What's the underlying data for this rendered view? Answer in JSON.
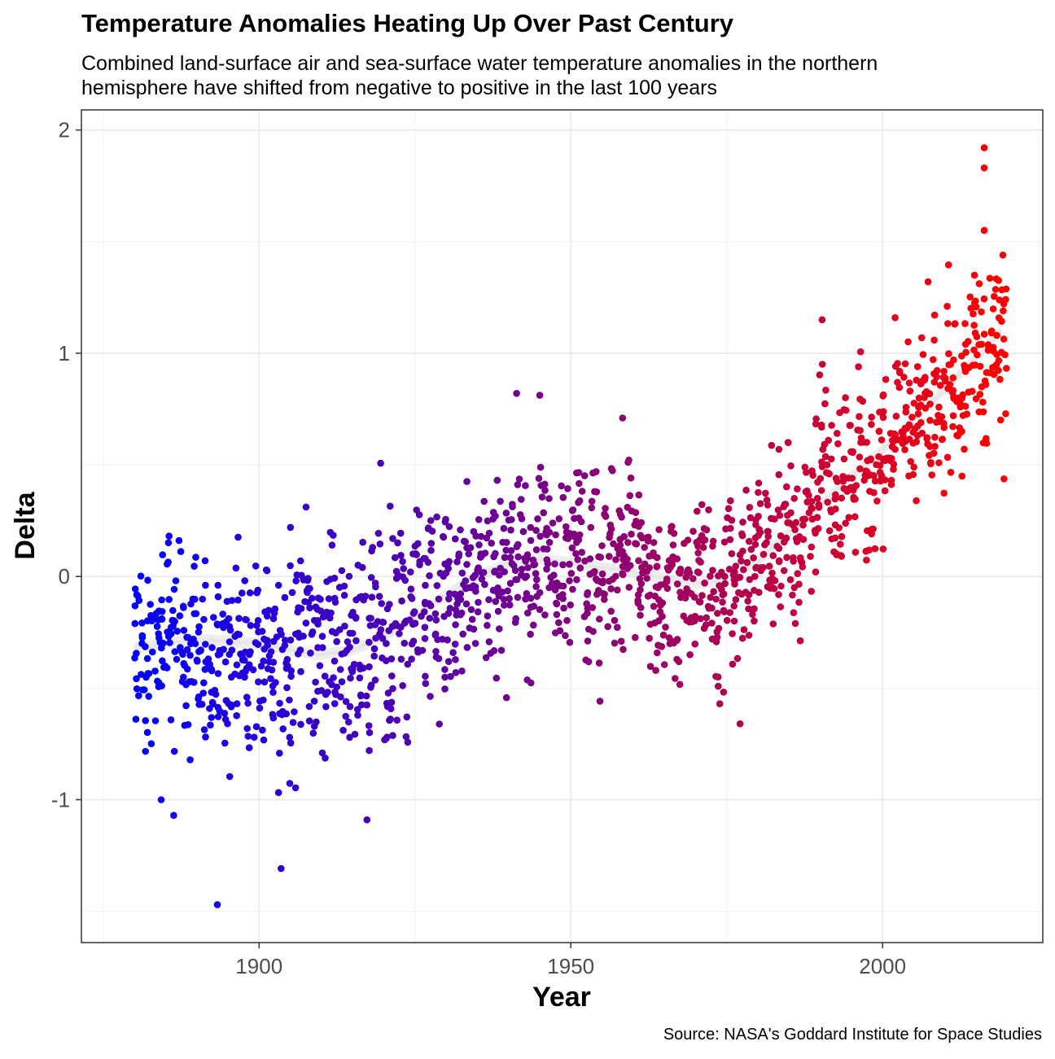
{
  "chart_data": {
    "type": "scatter",
    "title": "Temperature Anomalies Heating Up Over Past Century",
    "subtitle": [
      "Combined land-surface air and sea-surface water temperature anomalies in the northern",
      "hemisphere have shifted from negative to positive in the last 100 years"
    ],
    "xlabel": "Year",
    "ylabel": "Delta",
    "caption": "Source: NASA's Goddard Institute for Space Studies",
    "xlim": [
      1871.5,
      2025.7
    ],
    "ylim": [
      -1.64,
      2.09
    ],
    "x_ticks": [
      1900,
      1950,
      2000
    ],
    "x_tick_labels": [
      "1900",
      "1950",
      "2000"
    ],
    "y_ticks": [
      -1,
      0,
      1,
      2
    ],
    "y_tick_labels": [
      "-1",
      "0",
      "1",
      "2"
    ],
    "x_minor_ticks": [
      1875,
      1925,
      1975,
      2025
    ],
    "y_minor_ticks": [
      -1.5,
      -0.5,
      0.5,
      1.5
    ],
    "grid": true,
    "legend": "none",
    "point_color_low": "#0000ff",
    "point_color_high": "#ff0000",
    "smooth_color": "#e6e6e6",
    "points_note_free": true,
    "series": [
      {
        "kind": "monthly-points",
        "year_start": 1880,
        "year_end": 2019,
        "points_per_year": 12
      }
    ],
    "smooth": {
      "x": [
        1880,
        1885,
        1890,
        1895,
        1900,
        1905,
        1910,
        1915,
        1920,
        1925,
        1930,
        1935,
        1940,
        1945,
        1950,
        1955,
        1960,
        1965,
        1970,
        1975,
        1980,
        1985,
        1990,
        1995,
        2000,
        2005,
        2010,
        2015,
        2019
      ],
      "y": [
        -0.32,
        -0.3,
        -0.28,
        -0.29,
        -0.3,
        -0.33,
        -0.35,
        -0.33,
        -0.27,
        -0.18,
        -0.08,
        0.0,
        0.06,
        0.08,
        0.06,
        0.04,
        0.02,
        -0.01,
        -0.03,
        -0.02,
        0.07,
        0.2,
        0.32,
        0.45,
        0.57,
        0.7,
        0.84,
        0.98,
        1.1
      ]
    },
    "labeled_outliers": [
      {
        "x": 1893,
        "y": -1.47
      },
      {
        "x": 1884,
        "y": -1.0
      },
      {
        "x": 1886,
        "y": -1.07
      },
      {
        "x": 1917,
        "y": -1.09
      },
      {
        "x": 1941,
        "y": 0.82
      },
      {
        "x": 1958,
        "y": 0.71
      },
      {
        "x": 1990,
        "y": 1.15
      },
      {
        "x": 2007,
        "y": 1.32
      },
      {
        "x": 2016,
        "y": 1.92
      },
      {
        "x": 2016,
        "y": 1.83
      },
      {
        "x": 2016,
        "y": 1.55
      },
      {
        "x": 2019,
        "y": 1.44
      }
    ]
  }
}
